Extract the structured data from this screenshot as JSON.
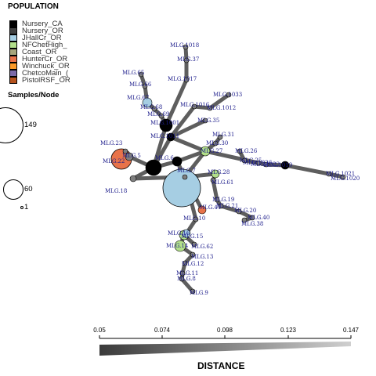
{
  "legend": {
    "title": "POPULATION",
    "items": [
      {
        "label": "Nursery_CA",
        "color": "#000000"
      },
      {
        "label": "Nursery_OR",
        "color": "#404040"
      },
      {
        "label": "JHallCr_OR",
        "color": "#a6cee3"
      },
      {
        "label": "NFChetHigh_",
        "color": "#b2df8a"
      },
      {
        "label": "Coast_OR",
        "color": "#a6a57c"
      },
      {
        "label": "HunterCr_OR",
        "color": "#e8734a"
      },
      {
        "label": "Winchuck_OR",
        "color": "#fb9a29"
      },
      {
        "label": "ChetcoMain_(",
        "color": "#7b6aa8"
      },
      {
        "label": "PistolRSF_OR",
        "color": "#b5521e"
      }
    ]
  },
  "samples_legend": {
    "title": "Samples/Node",
    "sizes": [
      {
        "label": "149",
        "value": 149
      },
      {
        "label": "60",
        "value": 60
      },
      {
        "label": "1",
        "value": 1
      }
    ]
  },
  "distance_scale": {
    "title": "DISTANCE",
    "ticks": [
      "0.05",
      "0.074",
      "0.098",
      "0.123",
      "0.147"
    ]
  },
  "network": {
    "node_labels": [
      "MLG.1018",
      "MLG.37",
      "MLG.1017",
      "MLG.1033",
      "MLG.65",
      "MLG.66",
      "MLG.67",
      "MLG.68",
      "MLG.69",
      "MLG.1012",
      "MLG.1016",
      "MLG.35",
      "MLG.31",
      "MLG.30",
      "MLG.26",
      "MLG.25",
      "MLG.1019",
      "MLG.1021",
      "MLG.1020",
      "MLG.28",
      "MLG.61",
      "MLG.19",
      "MLG.21",
      "MLG.20",
      "MLG.40",
      "MLG.38",
      "MLG.10",
      "MLG.15",
      "MLG.62",
      "MLG.13",
      "MLG.12",
      "MLG.11",
      "MLG.8",
      "MLG.9",
      "MLG.1011",
      "MLG.1001",
      "MLG.1022",
      "MLG.1026",
      "MLG.27",
      "MLG.41",
      "MLG.14",
      "MLG.16",
      "MLG.18",
      "MLG.22",
      "MLG.23",
      "MLG.5",
      "MLG.6",
      "MLG.7"
    ]
  }
}
